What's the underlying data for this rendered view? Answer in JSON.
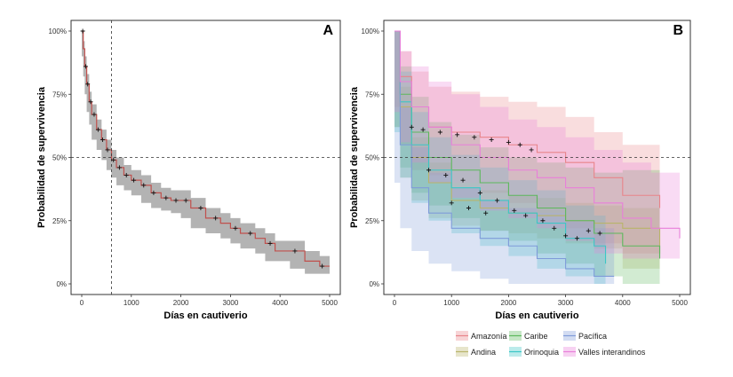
{
  "figure": {
    "background": "#ffffff"
  },
  "chart_data": [
    {
      "type": "line",
      "panel_label": "A",
      "xlabel": "Días en cautiverio",
      "ylabel": "Probabilidad de supervivencia",
      "xlim": [
        0,
        5000
      ],
      "ylim": [
        0,
        1
      ],
      "xticks": [
        0,
        1000,
        2000,
        3000,
        4000,
        5000
      ],
      "yticks": [
        0,
        0.25,
        0.5,
        0.75,
        1.0
      ],
      "ytick_labels": [
        "0%",
        "25%",
        "50%",
        "75%",
        "100%"
      ],
      "reference_lines": {
        "h": 0.5,
        "v": 600
      },
      "grid": false,
      "style": {
        "line_color": "#c0504d",
        "ci_color": "#a6a6a6"
      },
      "series": [
        {
          "x": [
            0,
            30,
            60,
            100,
            150,
            200,
            300,
            400,
            500,
            600,
            700,
            850,
            1000,
            1200,
            1400,
            1600,
            1800,
            2000,
            2200,
            2500,
            2800,
            3000,
            3200,
            3500,
            3700,
            3900,
            4200,
            4500,
            4800,
            5000
          ],
          "y": [
            1.0,
            0.93,
            0.86,
            0.79,
            0.72,
            0.67,
            0.61,
            0.57,
            0.53,
            0.49,
            0.46,
            0.43,
            0.41,
            0.39,
            0.36,
            0.34,
            0.33,
            0.33,
            0.3,
            0.26,
            0.24,
            0.22,
            0.2,
            0.18,
            0.16,
            0.13,
            0.13,
            0.09,
            0.07,
            0.07
          ],
          "lower": [
            1.0,
            0.9,
            0.82,
            0.75,
            0.68,
            0.63,
            0.57,
            0.53,
            0.49,
            0.45,
            0.42,
            0.39,
            0.37,
            0.35,
            0.32,
            0.3,
            0.29,
            0.28,
            0.26,
            0.22,
            0.2,
            0.18,
            0.16,
            0.14,
            0.12,
            0.09,
            0.09,
            0.06,
            0.04,
            0.04
          ],
          "upper": [
            1.0,
            0.96,
            0.9,
            0.83,
            0.76,
            0.71,
            0.65,
            0.61,
            0.57,
            0.53,
            0.5,
            0.47,
            0.45,
            0.43,
            0.4,
            0.38,
            0.37,
            0.37,
            0.34,
            0.3,
            0.28,
            0.26,
            0.24,
            0.22,
            0.2,
            0.17,
            0.17,
            0.13,
            0.11,
            0.11
          ]
        }
      ],
      "censor_x": [
        20,
        80,
        120,
        180,
        250,
        330,
        420,
        520,
        640,
        760,
        900,
        1050,
        1250,
        1450,
        1700,
        1900,
        2100,
        2400,
        2700,
        3100,
        3400,
        3800,
        4300,
        4850
      ]
    },
    {
      "type": "line",
      "panel_label": "B",
      "xlabel": "Días en cautiverio",
      "ylabel": "Probabilidad de supervivencia",
      "xlim": [
        0,
        5000
      ],
      "ylim": [
        0,
        1
      ],
      "xticks": [
        0,
        1000,
        2000,
        3000,
        4000,
        5000
      ],
      "yticks": [
        0,
        0.25,
        0.5,
        0.75,
        1.0
      ],
      "ytick_labels": [
        "0%",
        "25%",
        "50%",
        "75%",
        "100%"
      ],
      "reference_lines": {
        "h": 0.5
      },
      "grid": false,
      "legend_position": "bottom",
      "series": [
        {
          "name": "Amazonía",
          "color": "#e8848a",
          "x": [
            0,
            100,
            300,
            600,
            1000,
            1500,
            2000,
            2500,
            3000,
            3500,
            4000,
            4650
          ],
          "y": [
            1.0,
            0.82,
            0.7,
            0.62,
            0.6,
            0.58,
            0.55,
            0.52,
            0.48,
            0.42,
            0.35,
            0.3
          ],
          "lower": [
            1.0,
            0.7,
            0.55,
            0.45,
            0.43,
            0.4,
            0.36,
            0.32,
            0.28,
            0.22,
            0.16,
            0.12
          ],
          "upper": [
            1.0,
            0.92,
            0.84,
            0.78,
            0.76,
            0.74,
            0.72,
            0.7,
            0.66,
            0.6,
            0.55,
            0.5
          ]
        },
        {
          "name": "Andina",
          "color": "#b9b46a",
          "x": [
            0,
            100,
            300,
            600,
            1000,
            1500,
            2000,
            2500,
            3000,
            3500,
            4000,
            4650
          ],
          "y": [
            1.0,
            0.7,
            0.5,
            0.4,
            0.33,
            0.3,
            0.28,
            0.27,
            0.25,
            0.24,
            0.22,
            0.12
          ],
          "lower": [
            1.0,
            0.62,
            0.42,
            0.33,
            0.26,
            0.23,
            0.21,
            0.2,
            0.18,
            0.16,
            0.14,
            0.06
          ],
          "upper": [
            1.0,
            0.78,
            0.58,
            0.48,
            0.4,
            0.37,
            0.35,
            0.34,
            0.32,
            0.31,
            0.3,
            0.2
          ]
        },
        {
          "name": "Caribe",
          "color": "#5cb85c",
          "x": [
            0,
            100,
            300,
            600,
            1000,
            1500,
            2000,
            2500,
            3000,
            3500,
            4000,
            4650
          ],
          "y": [
            1.0,
            0.75,
            0.6,
            0.5,
            0.45,
            0.4,
            0.35,
            0.3,
            0.25,
            0.2,
            0.15,
            0.1
          ],
          "lower": [
            1.0,
            0.62,
            0.46,
            0.36,
            0.31,
            0.26,
            0.21,
            0.17,
            0.12,
            0.08,
            0.03,
            0.0
          ],
          "upper": [
            1.0,
            0.86,
            0.74,
            0.64,
            0.59,
            0.54,
            0.5,
            0.48,
            0.46,
            0.44,
            0.45,
            0.5
          ]
        },
        {
          "name": "Orinoquia",
          "color": "#3bc6c6",
          "x": [
            0,
            100,
            300,
            600,
            1000,
            1500,
            2000,
            2500,
            3000,
            3500,
            3700
          ],
          "y": [
            1.0,
            0.72,
            0.55,
            0.45,
            0.38,
            0.33,
            0.28,
            0.24,
            0.18,
            0.15,
            0.08
          ],
          "lower": [
            1.0,
            0.6,
            0.42,
            0.32,
            0.25,
            0.2,
            0.15,
            0.11,
            0.06,
            0.03,
            0.0
          ],
          "upper": [
            1.0,
            0.84,
            0.68,
            0.58,
            0.51,
            0.46,
            0.41,
            0.37,
            0.31,
            0.27,
            0.22
          ]
        },
        {
          "name": "Pacífica",
          "color": "#7f9bd9",
          "x": [
            0,
            100,
            300,
            600,
            1000,
            1500,
            2000,
            2500,
            3000,
            3500,
            3850
          ],
          "y": [
            1.0,
            0.55,
            0.38,
            0.28,
            0.22,
            0.18,
            0.15,
            0.1,
            0.06,
            0.03,
            0.03
          ],
          "lower": [
            1.0,
            0.4,
            0.22,
            0.13,
            0.08,
            0.05,
            0.02,
            0.0,
            0.0,
            0.0,
            0.0
          ],
          "upper": [
            1.0,
            0.7,
            0.54,
            0.44,
            0.38,
            0.33,
            0.3,
            0.28,
            0.25,
            0.22,
            0.22
          ]
        },
        {
          "name": "Valles interandinos",
          "color": "#e87fd9",
          "x": [
            0,
            100,
            300,
            600,
            1000,
            1500,
            2000,
            2500,
            3000,
            3500,
            4000,
            4500,
            5000
          ],
          "y": [
            1.0,
            0.8,
            0.7,
            0.62,
            0.55,
            0.5,
            0.45,
            0.42,
            0.38,
            0.32,
            0.26,
            0.22,
            0.18
          ],
          "lower": [
            1.0,
            0.68,
            0.56,
            0.48,
            0.4,
            0.34,
            0.29,
            0.26,
            0.22,
            0.17,
            0.12,
            0.1,
            0.1
          ],
          "upper": [
            1.0,
            0.92,
            0.86,
            0.8,
            0.75,
            0.7,
            0.65,
            0.62,
            0.58,
            0.53,
            0.48,
            0.44,
            0.44
          ]
        }
      ],
      "censor_points": [
        {
          "x": 300,
          "y": 0.62
        },
        {
          "x": 500,
          "y": 0.61
        },
        {
          "x": 800,
          "y": 0.6
        },
        {
          "x": 1100,
          "y": 0.59
        },
        {
          "x": 1400,
          "y": 0.58
        },
        {
          "x": 1700,
          "y": 0.57
        },
        {
          "x": 2000,
          "y": 0.56
        },
        {
          "x": 2200,
          "y": 0.55
        },
        {
          "x": 2400,
          "y": 0.53
        },
        {
          "x": 600,
          "y": 0.45
        },
        {
          "x": 900,
          "y": 0.43
        },
        {
          "x": 1200,
          "y": 0.41
        },
        {
          "x": 1500,
          "y": 0.36
        },
        {
          "x": 1800,
          "y": 0.33
        },
        {
          "x": 2100,
          "y": 0.29
        },
        {
          "x": 2300,
          "y": 0.27
        },
        {
          "x": 2600,
          "y": 0.25
        },
        {
          "x": 2800,
          "y": 0.22
        },
        {
          "x": 3000,
          "y": 0.19
        },
        {
          "x": 3200,
          "y": 0.18
        },
        {
          "x": 3400,
          "y": 0.21
        },
        {
          "x": 3600,
          "y": 0.2
        },
        {
          "x": 1000,
          "y": 0.32
        },
        {
          "x": 1300,
          "y": 0.3
        },
        {
          "x": 1600,
          "y": 0.28
        }
      ]
    }
  ],
  "legend": {
    "items": [
      {
        "label": "Amazonía",
        "color": "#e8848a"
      },
      {
        "label": "Caribe",
        "color": "#5cb85c"
      },
      {
        "label": "Pacífica",
        "color": "#7f9bd9"
      },
      {
        "label": "Andina",
        "color": "#b9b46a"
      },
      {
        "label": "Orinoquia",
        "color": "#3bc6c6"
      },
      {
        "label": "Valles interandinos",
        "color": "#e87fd9"
      }
    ]
  }
}
